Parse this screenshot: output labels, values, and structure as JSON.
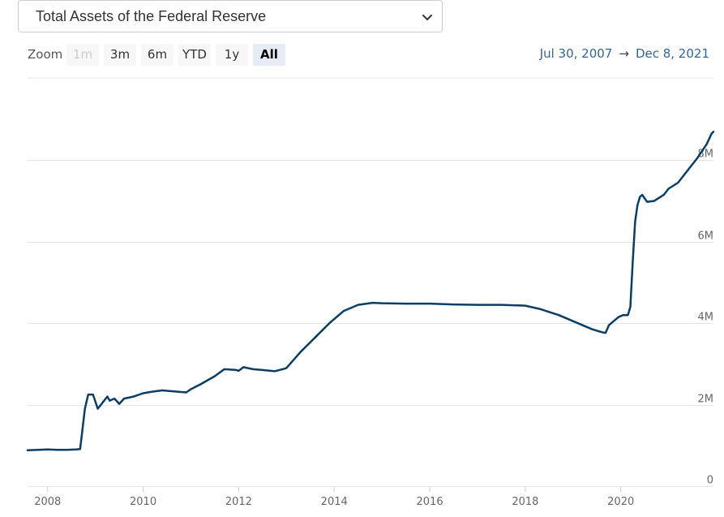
{
  "selector": {
    "label": "Total Assets of the Federal Reserve"
  },
  "zoom": {
    "label": "Zoom",
    "buttons": [
      {
        "label": "1m",
        "state": "disabled"
      },
      {
        "label": "3m",
        "state": "normal"
      },
      {
        "label": "6m",
        "state": "normal"
      },
      {
        "label": "YTD",
        "state": "normal"
      },
      {
        "label": "1y",
        "state": "normal"
      },
      {
        "label": "All",
        "state": "active"
      }
    ]
  },
  "range": {
    "from": "Jul 30, 2007",
    "arrow": "→",
    "to": "Dec 8, 2021"
  },
  "colors": {
    "line": "#0b3d66",
    "grid": "#e6e6e6",
    "accent": "#336699"
  },
  "chart_data": {
    "type": "line",
    "title": "Total Assets of the Federal Reserve",
    "xlabel": "",
    "ylabel": "",
    "xlim": [
      2007.58,
      2021.94
    ],
    "ylim": [
      0,
      10000000
    ],
    "grid": true,
    "x_ticks": [
      {
        "value": 2008,
        "label": "2008"
      },
      {
        "value": 2010,
        "label": "2010"
      },
      {
        "value": 2012,
        "label": "2012"
      },
      {
        "value": 2014,
        "label": "2014"
      },
      {
        "value": 2016,
        "label": "2016"
      },
      {
        "value": 2018,
        "label": "2018"
      },
      {
        "value": 2020,
        "label": "2020"
      }
    ],
    "y_ticks": [
      {
        "value": 0,
        "label": "0"
      },
      {
        "value": 2000000,
        "label": "2M"
      },
      {
        "value": 4000000,
        "label": "4M"
      },
      {
        "value": 6000000,
        "label": "6M"
      },
      {
        "value": 8000000,
        "label": "8M"
      }
    ],
    "series": [
      {
        "name": "Total Assets",
        "x": [
          2007.58,
          2007.8,
          2008.0,
          2008.2,
          2008.4,
          2008.6,
          2008.68,
          2008.72,
          2008.78,
          2008.85,
          2008.95,
          2009.05,
          2009.15,
          2009.25,
          2009.3,
          2009.4,
          2009.5,
          2009.6,
          2009.8,
          2010.0,
          2010.2,
          2010.4,
          2010.6,
          2010.9,
          2011.0,
          2011.2,
          2011.5,
          2011.7,
          2011.95,
          2012.0,
          2012.1,
          2012.3,
          2012.5,
          2012.75,
          2012.95,
          2013.0,
          2013.3,
          2013.6,
          2013.9,
          2014.2,
          2014.5,
          2014.8,
          2015.0,
          2015.5,
          2016.0,
          2016.5,
          2017.0,
          2017.5,
          2018.0,
          2018.3,
          2018.7,
          2019.0,
          2019.4,
          2019.6,
          2019.68,
          2019.75,
          2019.85,
          2019.95,
          2020.05,
          2020.15,
          2020.2,
          2020.25,
          2020.3,
          2020.35,
          2020.4,
          2020.45,
          2020.55,
          2020.7,
          2020.9,
          2021.0,
          2021.2,
          2021.4,
          2021.6,
          2021.8,
          2021.9,
          2021.94
        ],
        "values": [
          880000,
          890000,
          900000,
          890000,
          890000,
          900000,
          910000,
          1300000,
          1900000,
          2250000,
          2250000,
          1900000,
          2050000,
          2200000,
          2100000,
          2150000,
          2020000,
          2150000,
          2200000,
          2280000,
          2320000,
          2350000,
          2330000,
          2300000,
          2380000,
          2500000,
          2700000,
          2870000,
          2850000,
          2830000,
          2920000,
          2870000,
          2850000,
          2820000,
          2880000,
          2900000,
          3300000,
          3650000,
          4000000,
          4300000,
          4450000,
          4500000,
          4490000,
          4480000,
          4480000,
          4460000,
          4450000,
          4450000,
          4430000,
          4350000,
          4200000,
          4050000,
          3850000,
          3780000,
          3760000,
          3950000,
          4050000,
          4150000,
          4200000,
          4200000,
          4400000,
          5500000,
          6500000,
          6900000,
          7100000,
          7150000,
          6980000,
          7000000,
          7150000,
          7300000,
          7450000,
          7750000,
          8050000,
          8400000,
          8650000,
          8700000
        ]
      }
    ]
  }
}
